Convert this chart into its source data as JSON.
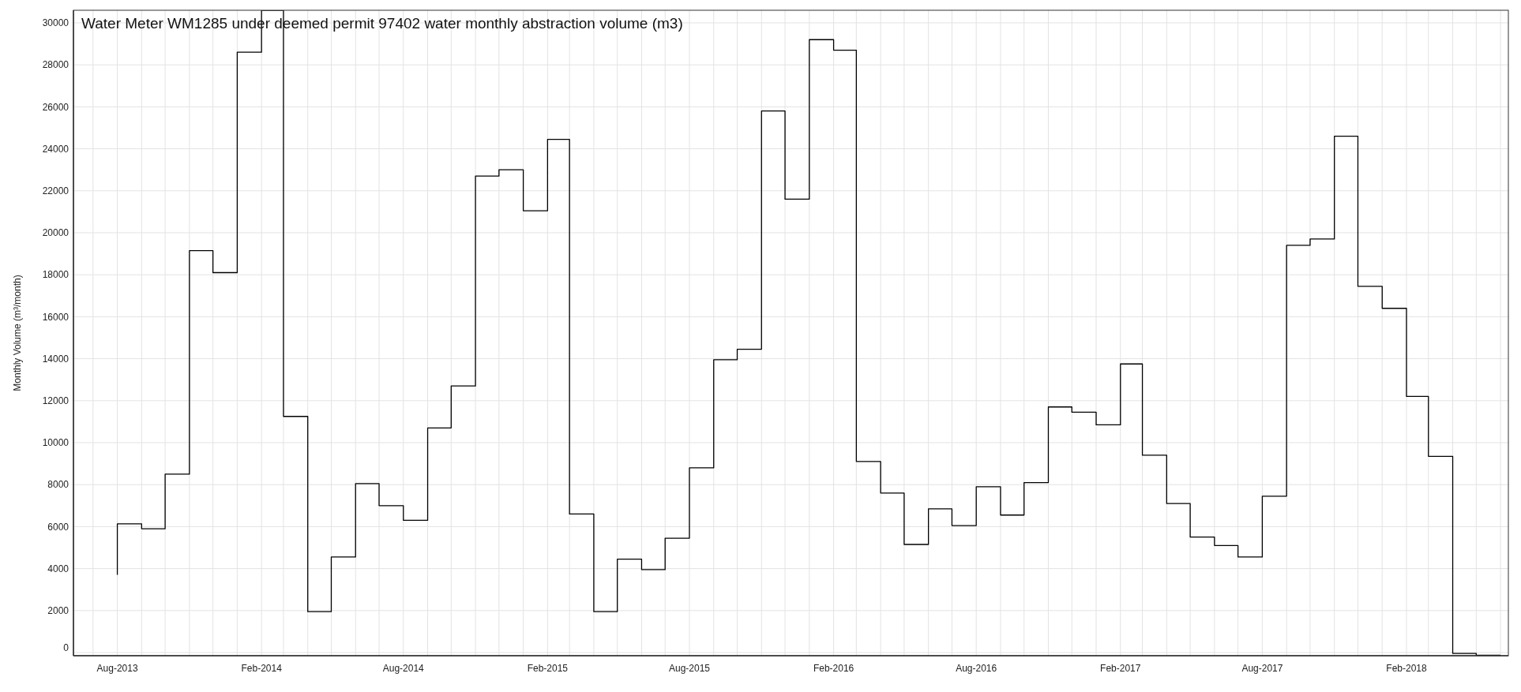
{
  "chart_data": {
    "type": "step",
    "title": "Water Meter WM1285 under deemed permit 97402 water monthly abstraction volume (m3)",
    "ylabel": "Monthly Volume (m³/month)",
    "x": [
      "2013-08",
      "2013-09",
      "2013-10",
      "2013-11",
      "2013-12",
      "2014-01",
      "2014-02",
      "2014-03",
      "2014-04",
      "2014-05",
      "2014-06",
      "2014-07",
      "2014-08",
      "2014-09",
      "2014-10",
      "2014-11",
      "2014-12",
      "2015-01",
      "2015-02",
      "2015-03",
      "2015-04",
      "2015-05",
      "2015-06",
      "2015-07",
      "2015-08",
      "2015-09",
      "2015-10",
      "2015-11",
      "2015-12",
      "2016-01",
      "2016-02",
      "2016-03",
      "2016-04",
      "2016-05",
      "2016-06",
      "2016-07",
      "2016-08",
      "2016-09",
      "2016-10",
      "2016-11",
      "2016-12",
      "2017-01",
      "2017-02",
      "2017-03",
      "2017-04",
      "2017-05",
      "2017-06",
      "2017-07",
      "2017-08",
      "2017-09",
      "2017-10",
      "2017-11",
      "2017-12",
      "2018-01",
      "2018-02",
      "2018-03",
      "2018-04",
      "2018-05",
      "2018-06"
    ],
    "series": [
      {
        "color": "#000000",
        "values": [
          3700,
          6130,
          5900,
          8500,
          19150,
          18100,
          28600,
          30600,
          11250,
          1950,
          4550,
          8050,
          7000,
          6300,
          10700,
          12700,
          22700,
          23000,
          21050,
          24450,
          6600,
          1950,
          4450,
          3950,
          5450,
          8800,
          13950,
          14450,
          25800,
          21600,
          29200,
          28700,
          9100,
          7600,
          5150,
          6850,
          6050,
          7900,
          6550,
          8100,
          11700,
          11450,
          10850,
          13750,
          9400,
          7100,
          5500,
          5100,
          4550,
          7450,
          19400,
          19700,
          24600,
          17450,
          16400,
          12200,
          9350,
          -40,
          -130
        ]
      }
    ],
    "xlim": [
      "2013-06-06",
      "2018-06-11"
    ],
    "ylim": [
      -150,
      30600
    ],
    "xticks": [
      {
        "value": "2013-07",
        "label": null
      },
      {
        "value": "2013-08",
        "label": "Aug-2013"
      },
      {
        "value": "2013-09",
        "label": null
      },
      {
        "value": "2013-10",
        "label": null
      },
      {
        "value": "2013-11",
        "label": null
      },
      {
        "value": "2013-12",
        "label": null
      },
      {
        "value": "2014-01",
        "label": null
      },
      {
        "value": "2014-02",
        "label": "Feb-2014"
      },
      {
        "value": "2014-03",
        "label": null
      },
      {
        "value": "2014-04",
        "label": null
      },
      {
        "value": "2014-05",
        "label": null
      },
      {
        "value": "2014-06",
        "label": null
      },
      {
        "value": "2014-07",
        "label": null
      },
      {
        "value": "2014-08",
        "label": "Aug-2014"
      },
      {
        "value": "2014-09",
        "label": null
      },
      {
        "value": "2014-10",
        "label": null
      },
      {
        "value": "2014-11",
        "label": null
      },
      {
        "value": "2014-12",
        "label": null
      },
      {
        "value": "2015-01",
        "label": null
      },
      {
        "value": "2015-02",
        "label": "Feb-2015"
      },
      {
        "value": "2015-03",
        "label": null
      },
      {
        "value": "2015-04",
        "label": null
      },
      {
        "value": "2015-05",
        "label": null
      },
      {
        "value": "2015-06",
        "label": null
      },
      {
        "value": "2015-07",
        "label": null
      },
      {
        "value": "2015-08",
        "label": "Aug-2015"
      },
      {
        "value": "2015-09",
        "label": null
      },
      {
        "value": "2015-10",
        "label": null
      },
      {
        "value": "2015-11",
        "label": null
      },
      {
        "value": "2015-12",
        "label": null
      },
      {
        "value": "2016-01",
        "label": null
      },
      {
        "value": "2016-02",
        "label": "Feb-2016"
      },
      {
        "value": "2016-03",
        "label": null
      },
      {
        "value": "2016-04",
        "label": null
      },
      {
        "value": "2016-05",
        "label": null
      },
      {
        "value": "2016-06",
        "label": null
      },
      {
        "value": "2016-07",
        "label": null
      },
      {
        "value": "2016-08",
        "label": "Aug-2016"
      },
      {
        "value": "2016-09",
        "label": null
      },
      {
        "value": "2016-10",
        "label": null
      },
      {
        "value": "2016-11",
        "label": null
      },
      {
        "value": "2016-12",
        "label": null
      },
      {
        "value": "2017-01",
        "label": null
      },
      {
        "value": "2017-02",
        "label": "Feb-2017"
      },
      {
        "value": "2017-03",
        "label": null
      },
      {
        "value": "2017-04",
        "label": null
      },
      {
        "value": "2017-05",
        "label": null
      },
      {
        "value": "2017-06",
        "label": null
      },
      {
        "value": "2017-07",
        "label": null
      },
      {
        "value": "2017-08",
        "label": "Aug-2017"
      },
      {
        "value": "2017-09",
        "label": null
      },
      {
        "value": "2017-10",
        "label": null
      },
      {
        "value": "2017-11",
        "label": null
      },
      {
        "value": "2017-12",
        "label": null
      },
      {
        "value": "2018-01",
        "label": null
      },
      {
        "value": "2018-02",
        "label": "Feb-2018"
      },
      {
        "value": "2018-03",
        "label": null
      },
      {
        "value": "2018-04",
        "label": null
      },
      {
        "value": "2018-05",
        "label": null
      },
      {
        "value": "2018-06",
        "label": null
      }
    ],
    "yticks": [
      0,
      2000,
      4000,
      6000,
      8000,
      10000,
      12000,
      14000,
      16000,
      18000,
      20000,
      22000,
      24000,
      26000,
      28000,
      30000
    ],
    "grid": true
  }
}
